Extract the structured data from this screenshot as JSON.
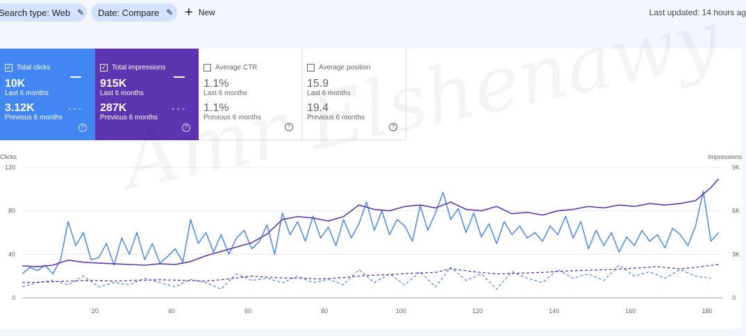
{
  "filters": {
    "search_type": "Search type: Web",
    "date": "Date: Compare",
    "new_label": "New",
    "pencil_icon": "edit-icon",
    "plus_icon": "plus-icon"
  },
  "last_updated": "Last updated: 14 hours ag",
  "metrics": {
    "clicks": {
      "label": "Total clicks",
      "checked": true,
      "value": "10K",
      "period": "Last 6 months",
      "prev_value": "3.12K",
      "prev_period": "Previous 6 months",
      "color": "#4286f4"
    },
    "impressions": {
      "label": "Total impressions",
      "checked": true,
      "value": "915K",
      "period": "Last 6 months",
      "prev_value": "287K",
      "prev_period": "Previous 6 months",
      "color": "#5e35b1"
    },
    "ctr": {
      "label": "Average CTR",
      "checked": false,
      "value": "1.1%",
      "period": "Last 6 months",
      "prev_value": "1.1%",
      "prev_period": "Previous 6 months"
    },
    "position": {
      "label": "Average position",
      "checked": false,
      "value": "15.9",
      "period": "Last 6 months",
      "prev_value": "19.4",
      "prev_period": "Previous 6 months"
    }
  },
  "watermark": "Amr Elshenawy",
  "chart_data": {
    "type": "line",
    "left_axis_label": "Clicks",
    "right_axis_label": "Impressions",
    "left_ticks": [
      "0",
      "40",
      "80",
      "120"
    ],
    "left_ylim": [
      0,
      120
    ],
    "right_ticks": [
      "0",
      "3K",
      "6K",
      "9K"
    ],
    "right_ylim": [
      0,
      9000
    ],
    "x_ticks": [
      "20",
      "40",
      "60",
      "80",
      "100",
      "120",
      "140",
      "160",
      "180"
    ],
    "xlim": [
      1,
      184
    ],
    "grid": true,
    "series": [
      {
        "name": "Clicks",
        "axis": "left",
        "style": "solid",
        "color": "#4e8df5",
        "x": [
          1,
          3,
          5,
          7,
          9,
          11,
          13,
          15,
          17,
          19,
          21,
          23,
          25,
          27,
          29,
          31,
          33,
          35,
          37,
          39,
          41,
          43,
          45,
          47,
          49,
          51,
          53,
          55,
          57,
          59,
          61,
          63,
          65,
          67,
          69,
          71,
          73,
          75,
          77,
          79,
          81,
          83,
          85,
          87,
          89,
          91,
          93,
          95,
          97,
          99,
          101,
          103,
          105,
          107,
          109,
          111,
          113,
          115,
          117,
          119,
          121,
          123,
          125,
          127,
          129,
          131,
          133,
          135,
          137,
          139,
          141,
          143,
          145,
          147,
          149,
          151,
          153,
          155,
          157,
          159,
          161,
          163,
          165,
          167,
          169,
          171,
          173,
          175,
          177,
          179,
          181,
          183
        ],
        "y": [
          22,
          28,
          25,
          30,
          22,
          35,
          70,
          48,
          60,
          35,
          37,
          50,
          30,
          55,
          40,
          60,
          35,
          50,
          32,
          38,
          45,
          33,
          72,
          50,
          60,
          42,
          58,
          40,
          55,
          62,
          45,
          52,
          67,
          40,
          78,
          58,
          70,
          52,
          75,
          55,
          65,
          48,
          72,
          55,
          68,
          88,
          62,
          80,
          58,
          72,
          66,
          52,
          85,
          62,
          78,
          97,
          72,
          82,
          60,
          78,
          56,
          68,
          50,
          70,
          58,
          66,
          55,
          60,
          52,
          66,
          58,
          75,
          55,
          70,
          45,
          62,
          48,
          60,
          42,
          56,
          48,
          62,
          52,
          58,
          46,
          64,
          58,
          48,
          66,
          98,
          52,
          60
        ]
      },
      {
        "name": "Impressions",
        "axis": "right",
        "style": "solid",
        "color": "#5e35b1",
        "x": [
          1,
          5,
          9,
          13,
          17,
          21,
          25,
          29,
          33,
          37,
          41,
          45,
          49,
          53,
          57,
          61,
          65,
          69,
          73,
          77,
          81,
          85,
          89,
          93,
          97,
          101,
          105,
          109,
          113,
          117,
          121,
          125,
          129,
          133,
          137,
          141,
          145,
          149,
          153,
          157,
          161,
          165,
          169,
          173,
          177,
          181,
          183
        ],
        "y": [
          2200,
          2150,
          2250,
          2600,
          2450,
          2400,
          2350,
          2300,
          2250,
          2350,
          2300,
          2500,
          2900,
          3200,
          3500,
          3800,
          4400,
          5400,
          5600,
          5500,
          5300,
          5600,
          6400,
          6100,
          6000,
          6300,
          6400,
          6200,
          6600,
          6100,
          6000,
          6300,
          5800,
          5900,
          5700,
          6000,
          6100,
          6300,
          6200,
          6400,
          6300,
          6500,
          6400,
          6500,
          6700,
          7600,
          8200
        ]
      },
      {
        "name": "Clicks (previous)",
        "axis": "left",
        "style": "dashed",
        "color": "#4e8df5",
        "x": [
          1,
          5,
          9,
          13,
          17,
          21,
          25,
          29,
          33,
          37,
          41,
          45,
          49,
          53,
          57,
          61,
          65,
          69,
          73,
          77,
          81,
          85,
          89,
          93,
          97,
          101,
          105,
          109,
          113,
          117,
          121,
          125,
          129,
          133,
          137,
          141,
          145,
          149,
          153,
          157,
          161,
          165,
          169,
          173,
          177,
          181
        ],
        "y": [
          10,
          14,
          16,
          12,
          20,
          10,
          14,
          12,
          18,
          14,
          10,
          17,
          14,
          8,
          22,
          16,
          18,
          14,
          20,
          14,
          17,
          12,
          26,
          14,
          22,
          12,
          24,
          10,
          28,
          16,
          22,
          8,
          24,
          18,
          14,
          26,
          18,
          22,
          16,
          30,
          20,
          24,
          18,
          26,
          20,
          18
        ]
      },
      {
        "name": "Impressions (previous)",
        "axis": "right",
        "style": "dashed",
        "color": "#5e35b1",
        "x": [
          1,
          7,
          13,
          19,
          25,
          31,
          37,
          43,
          49,
          55,
          61,
          67,
          73,
          79,
          85,
          91,
          97,
          103,
          109,
          113,
          119,
          125,
          131,
          137,
          143,
          149,
          155,
          161,
          167,
          173,
          177,
          183
        ],
        "y": [
          1050,
          1100,
          1150,
          1200,
          1150,
          1200,
          1250,
          1200,
          1150,
          1300,
          1500,
          1400,
          1350,
          1300,
          1400,
          1550,
          1600,
          1700,
          1750,
          2000,
          1800,
          1650,
          1700,
          1750,
          1850,
          1900,
          1950,
          2050,
          2150,
          2000,
          2100,
          2300
        ]
      }
    ]
  }
}
